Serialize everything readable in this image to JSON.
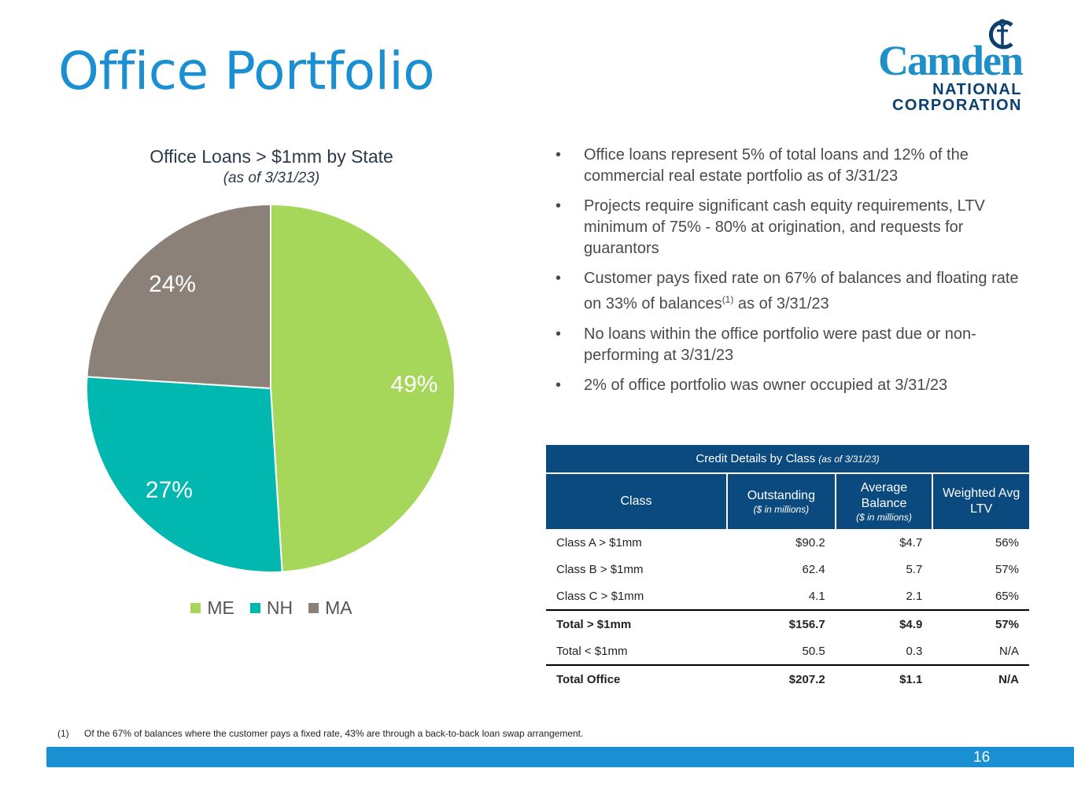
{
  "page": {
    "title": "Office Portfolio",
    "page_number": "16"
  },
  "logo": {
    "main": "Camden",
    "line1": "NATIONAL",
    "line2": "CORPORATION"
  },
  "colors": {
    "title": "#1a8fd1",
    "ME": "#a6d75b",
    "NH": "#00b8b0",
    "MA": "#8b8178",
    "table_header": "#0b4a7e",
    "footer_bar": "#1a8fd1"
  },
  "chart_data": {
    "type": "pie",
    "title": "Office Loans > $1mm by State",
    "subtitle": "(as of 3/31/23)",
    "categories": [
      "ME",
      "NH",
      "MA"
    ],
    "values": [
      49,
      27,
      24
    ],
    "labels": [
      "49%",
      "27%",
      "24%"
    ],
    "legend_position": "bottom"
  },
  "bullets": [
    {
      "text": "Office loans represent 5% of total loans and 12% of the commercial real estate portfolio as of 3/31/23"
    },
    {
      "text": "Projects require significant cash equity requirements, LTV minimum of 75% - 80% at origination, and requests for guarantors"
    },
    {
      "text_before": "Customer pays fixed rate on 67% of balances and floating rate on 33% of balances",
      "sup": "(1)",
      "text_after": " as of 3/31/23"
    },
    {
      "text": "No loans within the office portfolio were past due or non-performing at 3/31/23"
    },
    {
      "text": "2% of office portfolio was owner occupied at 3/31/23"
    }
  ],
  "bullet_symbol": "•",
  "table": {
    "title": "Credit Details by Class",
    "title_note": "(as of 3/31/23)",
    "headers": {
      "class": "Class",
      "outstanding": "Outstanding",
      "outstanding_sub": "($ in millions)",
      "average": "Average Balance",
      "average_sub": "($ in millions)",
      "ltv": "Weighted Avg LTV"
    },
    "rows": [
      [
        "Class A > $1mm",
        "$90.2",
        "$4.7",
        "56%"
      ],
      [
        "Class B > $1mm",
        "62.4",
        "5.7",
        "57%"
      ],
      [
        "Class C > $1mm",
        "4.1",
        "2.1",
        "65%"
      ],
      [
        "Total > $1mm",
        "$156.7",
        "$4.9",
        "57%"
      ],
      [
        "Total < $1mm",
        "50.5",
        "0.3",
        "N/A"
      ],
      [
        "Total Office",
        "$207.2",
        "$1.1",
        "N/A"
      ]
    ]
  },
  "footnote": {
    "num": "(1)",
    "text": "Of the 67% of balances where the customer pays a fixed rate, 43% are through a back-to-back loan swap arrangement."
  }
}
